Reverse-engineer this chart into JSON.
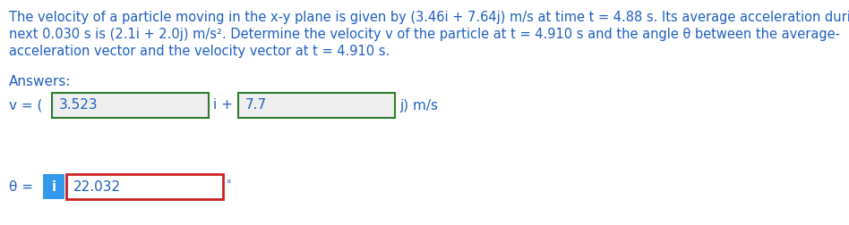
{
  "problem_text_line1": "The velocity of a particle moving in the x-y plane is given by (3.46i + 7.64j) m/s at time t = 4.88 s. Its average acceleration during the",
  "problem_text_line2": "next 0.030 s is (2.1i + 2.0j) m/s². Determine the velocity v of the particle at t = 4.910 s and the angle θ between the average-",
  "problem_text_line3": "acceleration vector and the velocity vector at t = 4.910 s.",
  "answers_label": "Answers:",
  "v_label": "v = ( ",
  "v_value1": "3.523",
  "v_mid": "i + ",
  "v_value2": "7.7",
  "v_end": "j) m/s",
  "theta_label": "θ = ",
  "info_letter": "i",
  "theta_value": "22.032",
  "theta_end": "°",
  "text_color": "#2060c0",
  "box1_border": "#2e7d2e",
  "box2_border": "#2e7d2e",
  "theta_box_border": "#cc2222",
  "box_bg": "#eeeeee",
  "theta_box_bg": "#ffffff",
  "info_bg": "#3399ee",
  "info_fg": "#ffffff",
  "font_size_problem": 10.5,
  "font_size_answers": 11,
  "font_size_boxes": 11,
  "bg_color": "#ffffff",
  "fig_width": 9.48,
  "fig_height": 2.52,
  "dpi": 100
}
